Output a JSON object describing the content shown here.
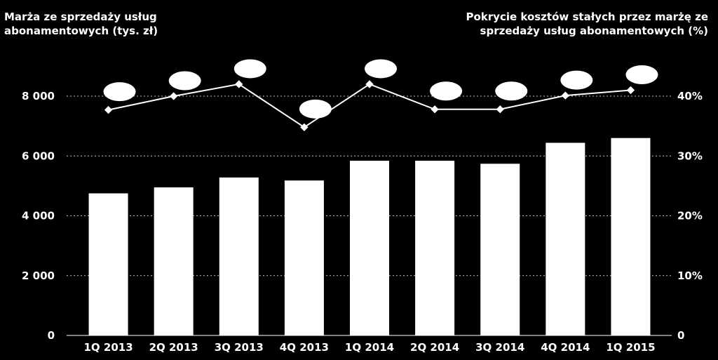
{
  "chart_data": {
    "type": "bar",
    "categories": [
      "1Q 2013",
      "2Q 2013",
      "3Q 2013",
      "4Q 2013",
      "1Q 2014",
      "2Q 2014",
      "3Q 2014",
      "4Q 2014",
      "1Q 2015"
    ],
    "series": [
      {
        "axis": "left",
        "type": "bar",
        "values": [
          4750,
          4950,
          5280,
          5180,
          5840,
          5840,
          5740,
          6440,
          6600
        ]
      },
      {
        "axis": "right",
        "type": "line",
        "values": [
          37.7,
          40.0,
          42.0,
          34.8,
          42.0,
          37.8,
          37.8,
          40.1,
          41.0
        ]
      }
    ],
    "ylabel": "Marża ze sprzedaży usług\nabonamentowych (tys. zł)",
    "y2label": "Pokrycie kosztów stałych przez marżę ze\nsprzedaży usług abonamentowych (%)",
    "ylim": [
      0,
      8000
    ],
    "y2lim": [
      0,
      40
    ],
    "yticks": [
      "0",
      "2 000",
      "4 000",
      "6 000",
      "8 000"
    ],
    "y2ticks": [
      "0",
      "10%",
      "20%",
      "30%",
      "40%"
    ],
    "grid": true,
    "colors": {
      "background": "#000000",
      "bars": "#ffffff",
      "line": "#ffffff",
      "grid": "#bfbfbf"
    }
  }
}
